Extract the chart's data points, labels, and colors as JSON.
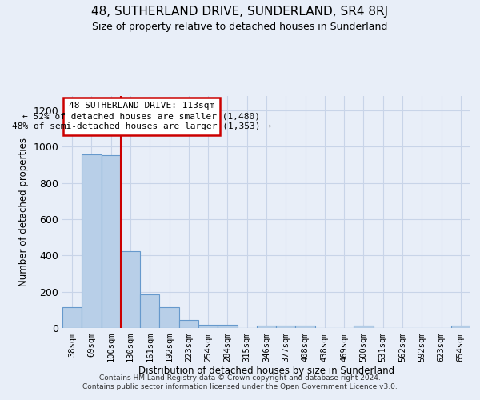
{
  "title": "48, SUTHERLAND DRIVE, SUNDERLAND, SR4 8RJ",
  "subtitle": "Size of property relative to detached houses in Sunderland",
  "xlabel": "Distribution of detached houses by size in Sunderland",
  "ylabel": "Number of detached properties",
  "footer_line1": "Contains HM Land Registry data © Crown copyright and database right 2024.",
  "footer_line2": "Contains public sector information licensed under the Open Government Licence v3.0.",
  "categories": [
    "38sqm",
    "69sqm",
    "100sqm",
    "130sqm",
    "161sqm",
    "192sqm",
    "223sqm",
    "254sqm",
    "284sqm",
    "315sqm",
    "346sqm",
    "377sqm",
    "408sqm",
    "438sqm",
    "469sqm",
    "500sqm",
    "531sqm",
    "562sqm",
    "592sqm",
    "623sqm",
    "654sqm"
  ],
  "values": [
    115,
    960,
    955,
    425,
    185,
    115,
    42,
    18,
    18,
    0,
    12,
    12,
    12,
    0,
    0,
    12,
    0,
    0,
    0,
    0,
    12
  ],
  "bar_color": "#b8cfe8",
  "bar_edge_color": "#6699cc",
  "background_color": "#e8eef8",
  "grid_color": "#c8d4e8",
  "red_line_x": 2.5,
  "annotation_title": "48 SUTHERLAND DRIVE: 113sqm",
  "annotation_line2": "← 52% of detached houses are smaller (1,480)",
  "annotation_line3": "48% of semi-detached houses are larger (1,353) →",
  "annotation_box_color": "#ffffff",
  "annotation_border_color": "#cc0000",
  "red_line_color": "#cc0000",
  "ylim": [
    0,
    1280
  ],
  "yticks": [
    0,
    200,
    400,
    600,
    800,
    1000,
    1200
  ]
}
